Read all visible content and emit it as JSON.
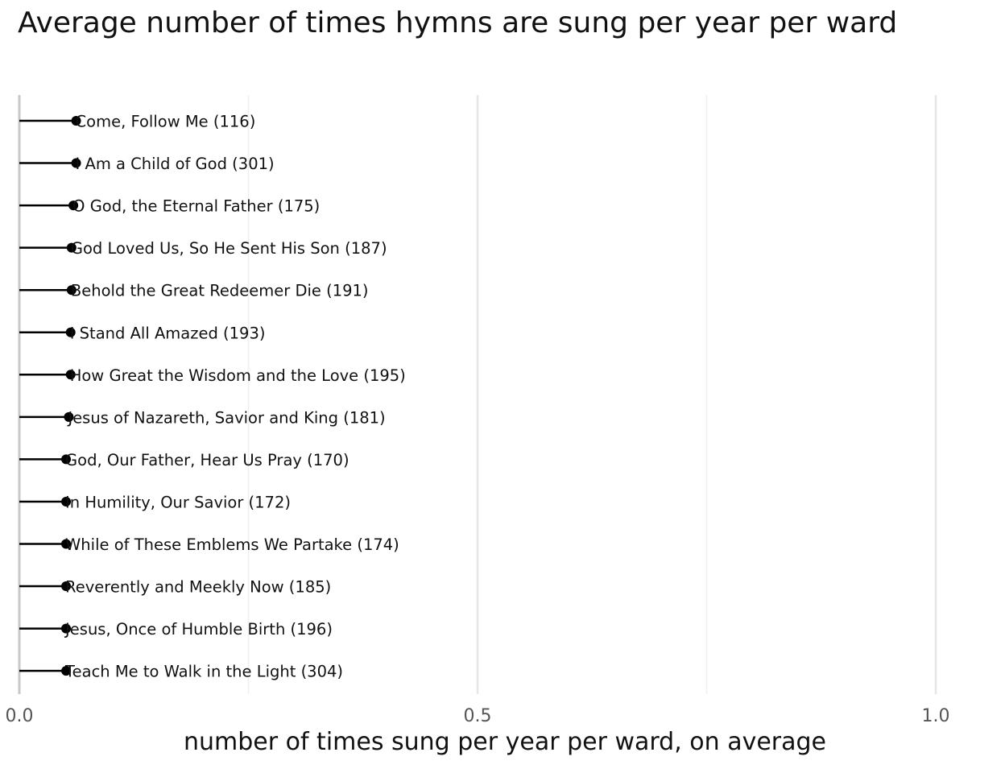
{
  "chart_data": {
    "type": "lollipop",
    "title": "Average number of times hymns are sung per year per ward",
    "xlabel": "number of times sung per year per ward, on average",
    "ylabel": "",
    "xlim": [
      0.0,
      1.0
    ],
    "x_ticks": [
      0.0,
      0.5,
      1.0
    ],
    "x_tick_labels": [
      "0.0",
      "0.5",
      "1.0"
    ],
    "minor_gridlines": [
      0.25,
      0.75
    ],
    "grid": true,
    "legend": "none",
    "colors": {
      "stem": "#000000",
      "point": "#000000",
      "grid": "#e6e6e6",
      "axis": "#c8c8c8",
      "text": "#111111"
    },
    "points": [
      {
        "label": "Come, Follow Me (116)",
        "value": 0.062
      },
      {
        "label": "I Am a Child of God (301)",
        "value": 0.062
      },
      {
        "label": "O God, the Eternal Father (175)",
        "value": 0.059
      },
      {
        "label": "God Loved Us, So He Sent His Son (187)",
        "value": 0.057
      },
      {
        "label": "Behold the Great Redeemer Die (191)",
        "value": 0.057
      },
      {
        "label": "I Stand All Amazed (193)",
        "value": 0.056
      },
      {
        "label": "How Great the Wisdom and the Love (195)",
        "value": 0.056
      },
      {
        "label": "Jesus of Nazareth, Savior and King (181)",
        "value": 0.054
      },
      {
        "label": "God, Our Father, Hear Us Pray (170)",
        "value": 0.051
      },
      {
        "label": "In Humility, Our Savior (172)",
        "value": 0.051
      },
      {
        "label": "While of These Emblems We Partake (174)",
        "value": 0.051
      },
      {
        "label": "Reverently and Meekly Now (185)",
        "value": 0.051
      },
      {
        "label": "Jesus, Once of Humble Birth (196)",
        "value": 0.051
      },
      {
        "label": "Teach Me to Walk in the Light (304)",
        "value": 0.051
      }
    ]
  }
}
